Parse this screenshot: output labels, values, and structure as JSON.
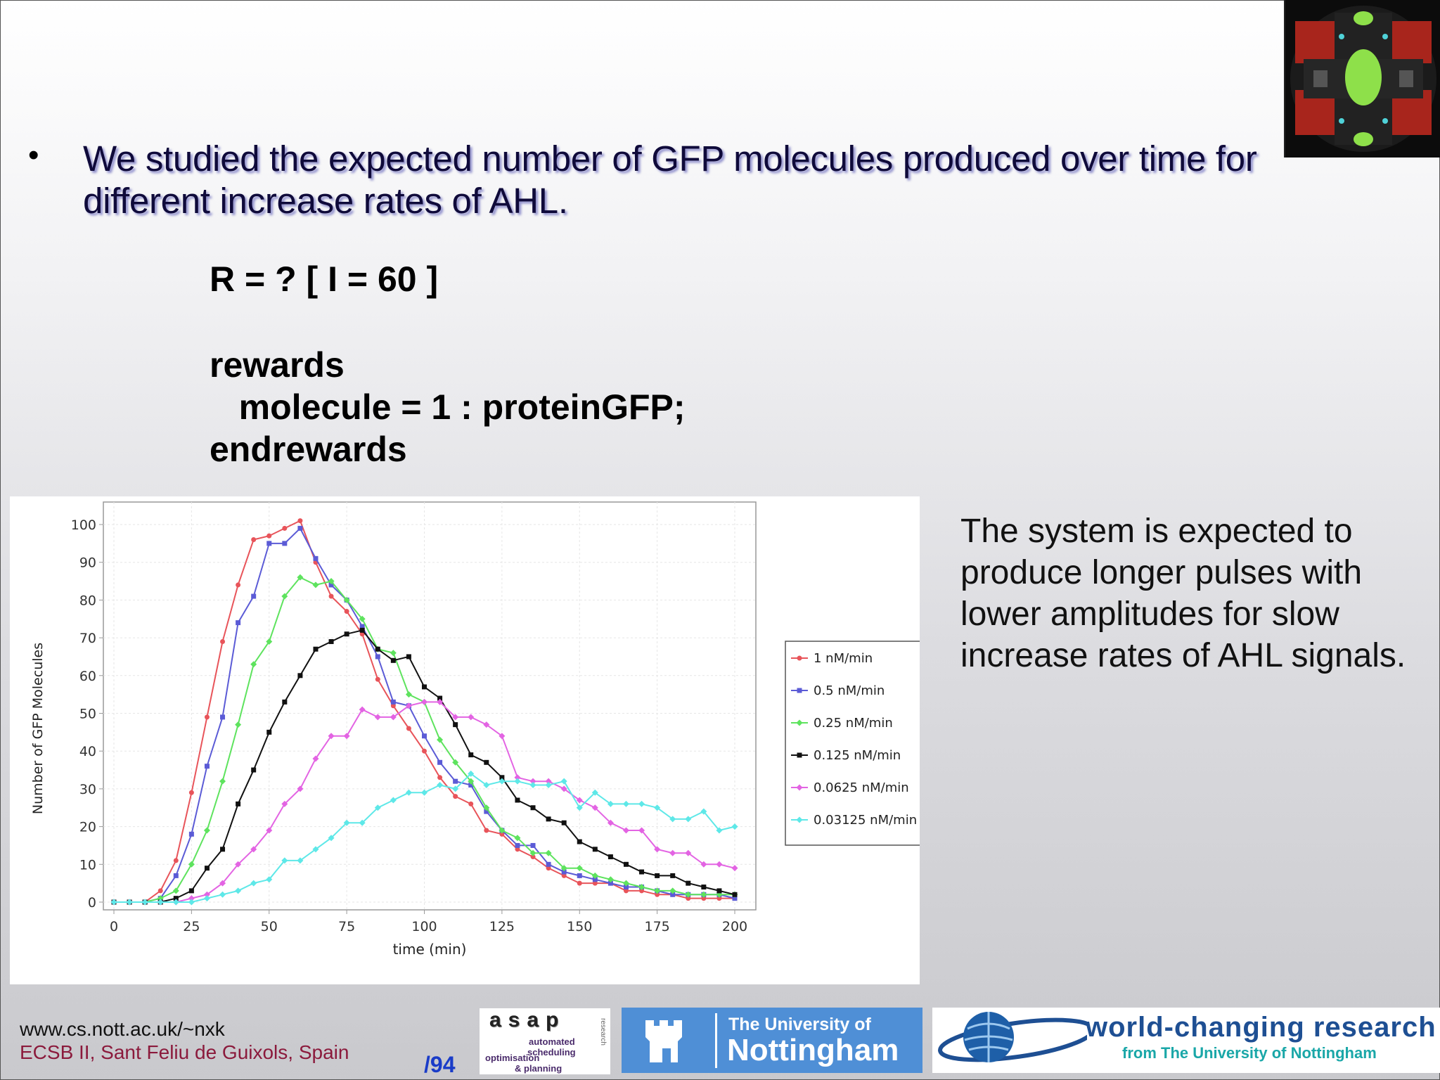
{
  "slide": {
    "bullet": "We studied the expected number of GFP molecules produced over time for different increase rates of AHL.",
    "bullet_marker": "•",
    "code": {
      "line1": "R = ? [ I = 60 ]",
      "line2": "rewards",
      "line3": "   molecule = 1 : proteinGFP;",
      "line4": "endrewards"
    },
    "side_text": "The system is expected to produce longer pulses with lower amplitudes for slow increase rates of AHL signals.",
    "footer": {
      "url": "www.cs.nott.ac.uk/~nxk",
      "conference": "ECSB II, Sant Feliu de Guixols, Spain",
      "page": "/94"
    },
    "logos": {
      "asap_big": "asap",
      "asap_l1": "automated",
      "asap_l2": "scheduling",
      "asap_l3": "optimisation",
      "asap_l4": "& planning",
      "asap_vert": "research",
      "notts_l1": "The University of",
      "notts_l2": "Nottingham",
      "world_l1": "world-changing research",
      "world_l2": "from The University of Nottingham"
    },
    "colors": {
      "bullet_text": "#0f0a3a",
      "footer_conf": "#8b1a3c",
      "page_num": "#1a3cc8"
    }
  },
  "chart_data": {
    "type": "line",
    "xlabel": "time (min)",
    "ylabel": "Number of GFP Molecules",
    "xlim": [
      0,
      200
    ],
    "ylim": [
      0,
      100
    ],
    "xticks": [
      0,
      25,
      50,
      75,
      100,
      125,
      150,
      175,
      200
    ],
    "yticks": [
      0,
      10,
      20,
      30,
      40,
      50,
      60,
      70,
      80,
      90,
      100
    ],
    "grid": true,
    "legend_position": "right",
    "x": [
      0,
      5,
      10,
      15,
      20,
      25,
      30,
      35,
      40,
      45,
      50,
      55,
      60,
      65,
      70,
      75,
      80,
      85,
      90,
      95,
      100,
      105,
      110,
      115,
      120,
      125,
      130,
      135,
      140,
      145,
      150,
      155,
      160,
      165,
      170,
      175,
      180,
      185,
      190,
      195,
      200
    ],
    "series": [
      {
        "name": "1 nM/min",
        "color": "#e8545a",
        "marker": "circle",
        "values": [
          0,
          0,
          0,
          3,
          11,
          29,
          49,
          69,
          84,
          96,
          97,
          99,
          101,
          90,
          81,
          77,
          71,
          59,
          52,
          46,
          40,
          33,
          28,
          26,
          19,
          18,
          14,
          12,
          9,
          7,
          5,
          5,
          5,
          3,
          3,
          2,
          2,
          1,
          1,
          1,
          1
        ]
      },
      {
        "name": "0.5 nM/min",
        "color": "#5b5bd6",
        "marker": "square",
        "values": [
          0,
          0,
          0,
          1,
          7,
          18,
          36,
          49,
          74,
          81,
          95,
          95,
          99,
          91,
          84,
          80,
          73,
          65,
          53,
          52,
          44,
          37,
          32,
          31,
          24,
          19,
          15,
          15,
          10,
          8,
          7,
          6,
          5,
          4,
          4,
          3,
          2,
          2,
          2,
          2,
          1
        ]
      },
      {
        "name": "0.25 nM/min",
        "color": "#5ee35e",
        "marker": "diamond",
        "values": [
          0,
          0,
          0,
          1,
          3,
          10,
          19,
          32,
          47,
          63,
          69,
          81,
          86,
          84,
          85,
          80,
          75,
          67,
          66,
          55,
          53,
          43,
          37,
          32,
          25,
          19,
          17,
          13,
          13,
          9,
          9,
          7,
          6,
          5,
          4,
          3,
          3,
          2,
          2,
          2,
          2
        ]
      },
      {
        "name": "0.125 nM/min",
        "color": "#111111",
        "marker": "square",
        "values": [
          0,
          0,
          0,
          0,
          1,
          3,
          9,
          14,
          26,
          35,
          45,
          53,
          60,
          67,
          69,
          71,
          72,
          67,
          64,
          65,
          57,
          54,
          47,
          39,
          37,
          33,
          27,
          25,
          22,
          21,
          16,
          14,
          12,
          10,
          8,
          7,
          7,
          5,
          4,
          3,
          2
        ]
      },
      {
        "name": "0.0625 nM/min",
        "color": "#e364e3",
        "marker": "diamond",
        "values": [
          0,
          0,
          0,
          0,
          0,
          1,
          2,
          5,
          10,
          14,
          19,
          26,
          30,
          38,
          44,
          44,
          51,
          49,
          49,
          52,
          53,
          53,
          49,
          49,
          47,
          44,
          33,
          32,
          32,
          30,
          27,
          25,
          21,
          19,
          19,
          14,
          13,
          13,
          10,
          10,
          9
        ]
      },
      {
        "name": "0.03125 nM/min",
        "color": "#5ee8e8",
        "marker": "diamond",
        "values": [
          0,
          0,
          0,
          0,
          0,
          0,
          1,
          2,
          3,
          5,
          6,
          11,
          11,
          14,
          17,
          21,
          21,
          25,
          27,
          29,
          29,
          31,
          30,
          34,
          31,
          32,
          32,
          31,
          31,
          32,
          25,
          29,
          26,
          26,
          26,
          25,
          22,
          22,
          24,
          19,
          20
        ]
      }
    ]
  }
}
